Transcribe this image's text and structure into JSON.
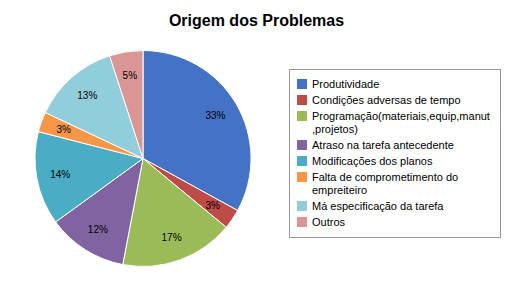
{
  "chart_data": {
    "type": "pie",
    "title": "Origem dos Problemas",
    "categories": [
      "Produtividade",
      "Condições adversas de tempo",
      "Programação(materiais,equip,manut\n,projetos)",
      "Atraso na tarefa antecedente",
      "Modificações dos planos",
      "Falta de comprometimento do\n empreiteiro",
      "Má especificação da tarefa",
      "Outros"
    ],
    "values": [
      33,
      3,
      17,
      12,
      14,
      3,
      13,
      5
    ],
    "value_labels": [
      "33%",
      "3%",
      "17%",
      "12%",
      "14%",
      "3%",
      "13%",
      "5%"
    ],
    "colors": [
      "#4472C4",
      "#BE4B48",
      "#9BBB59",
      "#8064A2",
      "#4BACC6",
      "#F79646",
      "#92CDDC",
      "#D99694"
    ],
    "data_labels": true,
    "legend": "right"
  }
}
